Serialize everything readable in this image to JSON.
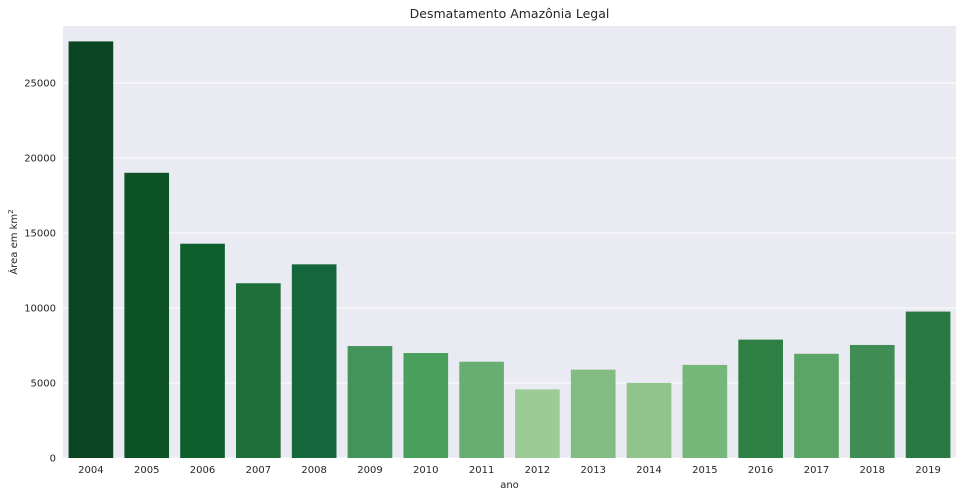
{
  "chart_data": {
    "type": "bar",
    "title": "Desmatamento Amazônia Legal",
    "xlabel": "ano",
    "ylabel_main": "Área em km",
    "ylabel_sup": "2",
    "categories": [
      "2004",
      "2005",
      "2006",
      "2007",
      "2008",
      "2009",
      "2010",
      "2011",
      "2012",
      "2013",
      "2014",
      "2015",
      "2016",
      "2017",
      "2018",
      "2019"
    ],
    "values": [
      27772,
      19014,
      14286,
      11651,
      12911,
      7464,
      7000,
      6418,
      4571,
      5891,
      5012,
      6207,
      7893,
      6947,
      7536,
      9762
    ],
    "colors": [
      "#0b4522",
      "#0d5326",
      "#0d5f2c",
      "#1f6f3a",
      "#13673a",
      "#43945a",
      "#4aa15d",
      "#68ad72",
      "#9dcb97",
      "#82bc83",
      "#91c48c",
      "#75b679",
      "#2f7f45",
      "#5ba567",
      "#3f8c55",
      "#2a7842"
    ],
    "yticks": [
      0,
      5000,
      10000,
      15000,
      20000,
      25000
    ],
    "ylim": [
      0,
      28800
    ],
    "grid": true,
    "background": "#eaeaf2"
  }
}
